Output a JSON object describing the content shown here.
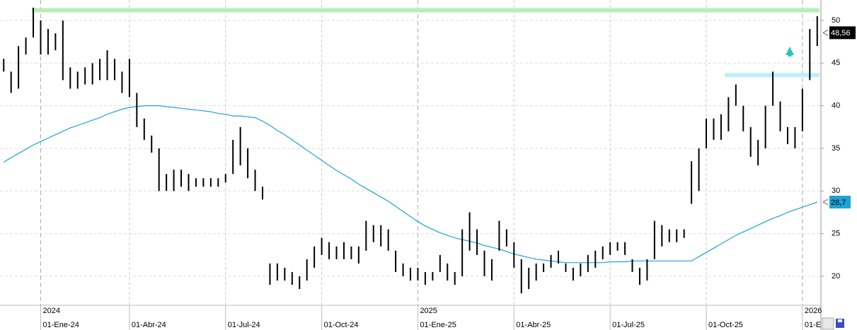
{
  "chart_data": {
    "type": "ohlc",
    "categories": [
      null,
      null,
      null,
      null,
      null,
      "01-Ene-24",
      null,
      null,
      null,
      null,
      null,
      null,
      null,
      null,
      null,
      null,
      null,
      "01-Abr-24",
      null,
      null,
      null,
      null,
      null,
      null,
      null,
      null,
      null,
      null,
      null,
      null,
      "01-Jul-24",
      null,
      null,
      null,
      null,
      null,
      null,
      null,
      null,
      null,
      null,
      null,
      null,
      "01-Oct-24",
      null,
      null,
      null,
      null,
      null,
      null,
      null,
      null,
      null,
      null,
      null,
      null,
      "01-Ene-25",
      null,
      null,
      null,
      null,
      null,
      null,
      null,
      null,
      null,
      null,
      null,
      null,
      "01-Abr-25",
      null,
      null,
      null,
      null,
      null,
      null,
      null,
      null,
      null,
      null,
      null,
      null,
      "01-Jul-25",
      null,
      null,
      null,
      null,
      null,
      null,
      null,
      null,
      null,
      null,
      null,
      null,
      "01-Oct-25",
      null,
      null,
      null,
      null,
      null,
      null,
      null,
      null,
      null,
      null,
      null,
      null,
      "01-E",
      null,
      null
    ],
    "years": [
      null,
      null,
      null,
      null,
      null,
      "2024",
      null,
      null,
      null,
      null,
      null,
      null,
      null,
      null,
      null,
      null,
      null,
      null,
      null,
      null,
      null,
      null,
      null,
      null,
      null,
      null,
      null,
      null,
      null,
      null,
      null,
      null,
      null,
      null,
      null,
      null,
      null,
      null,
      null,
      null,
      null,
      null,
      null,
      null,
      null,
      null,
      null,
      null,
      null,
      null,
      null,
      null,
      null,
      null,
      null,
      null,
      "2025",
      null,
      null,
      null,
      null,
      null,
      null,
      null,
      null,
      null,
      null,
      null,
      null,
      null,
      null,
      null,
      null,
      null,
      null,
      null,
      null,
      null,
      null,
      null,
      null,
      null,
      null,
      null,
      null,
      null,
      null,
      null,
      null,
      null,
      null,
      null,
      null,
      null,
      null,
      null,
      null,
      null,
      null,
      null,
      null,
      null,
      null,
      null,
      null,
      null,
      null,
      null,
      "2026",
      null,
      null
    ],
    "price": {
      "color": "#000000",
      "low": [
        44,
        41.5,
        42,
        46,
        48,
        46,
        46,
        46.5,
        43,
        42,
        42,
        42.5,
        42.5,
        43,
        43,
        43,
        41.5,
        41,
        37.5,
        36,
        34.5,
        30,
        30,
        30,
        30.5,
        30,
        30.5,
        30.5,
        30.5,
        30.5,
        31,
        32,
        33,
        31.5,
        30,
        29,
        19,
        19.5,
        19.5,
        19,
        18.5,
        19.5,
        21,
        22.5,
        22,
        22,
        22,
        22,
        21.5,
        23,
        24,
        23.5,
        23,
        20.5,
        20,
        19.5,
        19.5,
        19,
        19.5,
        20.5,
        19.5,
        19,
        20,
        23,
        22.5,
        20,
        19.5,
        23,
        23.5,
        21,
        18,
        18.5,
        19.5,
        20.5,
        21,
        21.5,
        20.5,
        19.5,
        20,
        20.5,
        21,
        22,
        22.5,
        23,
        22.5,
        20.5,
        19,
        19.5,
        22,
        23.5,
        24,
        24,
        24.5,
        28.5,
        30,
        35,
        36,
        36,
        37,
        40,
        37,
        34,
        33,
        35,
        40,
        37,
        35.5,
        35,
        37,
        43,
        47
      ],
      "high": [
        45.5,
        44,
        47,
        48,
        51.5,
        50,
        49,
        48.5,
        50,
        44.5,
        44,
        44.5,
        45,
        45.5,
        46.5,
        45.5,
        44,
        45.5,
        41.5,
        38.5,
        36.5,
        35,
        32,
        32.5,
        32.5,
        32,
        31.5,
        31.5,
        31.5,
        31.5,
        32,
        36,
        37.5,
        35,
        32.5,
        30.5,
        21.5,
        21.5,
        21,
        20.5,
        20,
        22,
        23.5,
        24.5,
        24,
        23.5,
        24,
        23.5,
        23.5,
        26.5,
        26,
        26,
        25.5,
        23,
        21.5,
        21,
        21,
        20.5,
        20.5,
        22.5,
        21.5,
        20.5,
        25.5,
        27.5,
        25.5,
        23,
        22,
        26.5,
        25.5,
        24,
        22,
        21,
        21.5,
        21.5,
        22.5,
        23,
        21.5,
        21,
        21.5,
        22.5,
        23,
        23.5,
        24,
        24,
        24,
        22,
        21,
        22,
        26.5,
        26,
        25.5,
        25.5,
        25.5,
        33.5,
        35,
        38.5,
        38.5,
        39,
        41,
        42.5,
        40,
        37.5,
        36,
        40,
        44,
        40.5,
        37.5,
        37.5,
        42,
        49,
        50.5
      ]
    },
    "moving_average": {
      "color": "#1fa3d6",
      "values": [
        33.4,
        33.9,
        34.4,
        34.9,
        35.4,
        35.8,
        36.2,
        36.6,
        37.0,
        37.4,
        37.7,
        38.0,
        38.3,
        38.6,
        39.0,
        39.3,
        39.6,
        39.8,
        39.9,
        40.0,
        40.0,
        40.0,
        39.9,
        39.8,
        39.7,
        39.6,
        39.5,
        39.4,
        39.3,
        39.1,
        39.0,
        38.8,
        38.8,
        38.7,
        38.6,
        38.2,
        37.7,
        37.1,
        36.6,
        36.0,
        35.4,
        34.8,
        34.2,
        33.6,
        33.0,
        32.4,
        31.9,
        31.4,
        30.8,
        30.3,
        29.8,
        29.3,
        28.8,
        28.2,
        27.6,
        27.0,
        26.4,
        25.9,
        25.5,
        25.1,
        24.8,
        24.5,
        24.3,
        24.1,
        23.9,
        23.6,
        23.4,
        23.2,
        22.9,
        22.6,
        22.4,
        22.2,
        22.0,
        21.9,
        21.8,
        21.7,
        21.6,
        21.6,
        21.6,
        21.6,
        21.6,
        21.6,
        21.7,
        21.7,
        21.7,
        21.8,
        21.8,
        21.8,
        21.8,
        21.8,
        21.8,
        21.8,
        21.8,
        21.8,
        22.3,
        22.8,
        23.3,
        23.8,
        24.3,
        24.8,
        25.2,
        25.6,
        26.0,
        26.4,
        26.8,
        27.1,
        27.5,
        27.8,
        28.1,
        28.4,
        28.7
      ]
    },
    "levels": [
      {
        "value": 51.2,
        "color": "#b6f0b0"
      },
      {
        "value": 43.6,
        "color": "#bdeefc",
        "start_category": 98
      }
    ],
    "last_price_label": {
      "value": 48.56,
      "label": "48,56"
    },
    "ma_label": {
      "value": 28.7,
      "label": "28,7"
    },
    "ylim": [
      16.6,
      52.4
    ],
    "yticks": [
      20,
      25,
      30,
      35,
      40,
      45,
      50
    ],
    "grid": true
  }
}
